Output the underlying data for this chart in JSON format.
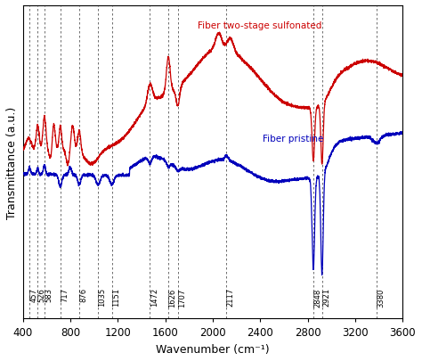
{
  "xlabel": "Wavenumber (cm⁻¹)",
  "ylabel": "Transmittance (a.u.)",
  "xlim": [
    400,
    3600
  ],
  "xticklabels": [
    400,
    800,
    1200,
    1600,
    2000,
    2400,
    2800,
    3200,
    3600
  ],
  "vlines": [
    457,
    526,
    583,
    717,
    876,
    1035,
    1151,
    1472,
    1626,
    1707,
    2117,
    2848,
    2921,
    3380
  ],
  "vline_labels": [
    "457",
    "526",
    "583",
    "717",
    "876",
    "1035",
    "1151",
    "1472",
    "1626",
    "1707",
    "2117",
    "2848",
    "2921",
    "3380"
  ],
  "blue_label": "Fiber pristine",
  "red_label": "Fiber two-stage sulfonated",
  "blue_color": "#0000bb",
  "red_color": "#cc0000"
}
